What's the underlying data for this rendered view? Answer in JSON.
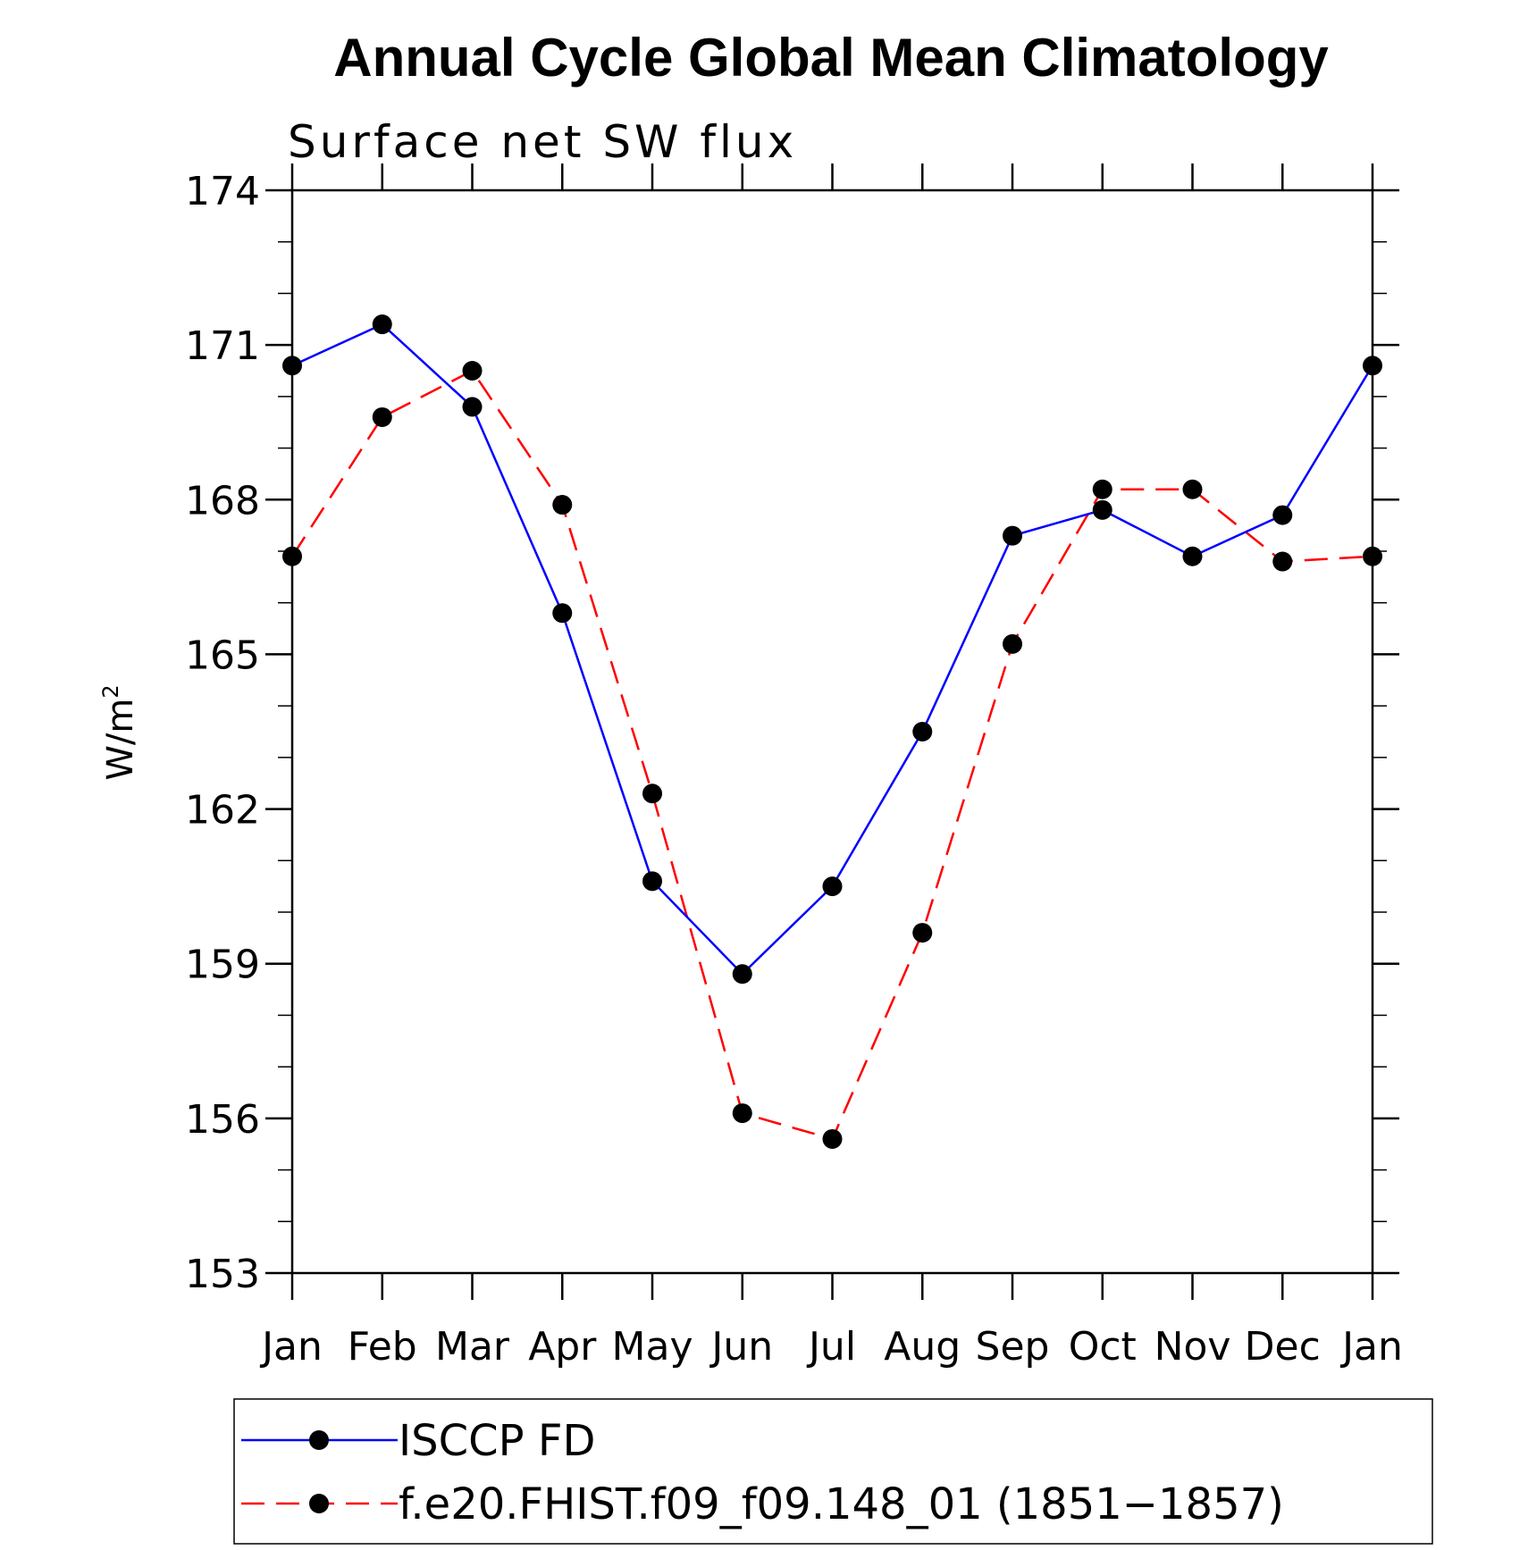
{
  "chart_data": {
    "type": "line",
    "title": "Annual Cycle Global Mean Climatology",
    "subtitle": "Surface net SW flux",
    "ylabel": "W/m",
    "ylabel_superscript": "2",
    "xlabel": "",
    "categories": [
      "Jan",
      "Feb",
      "Mar",
      "Apr",
      "May",
      "Jun",
      "Jul",
      "Aug",
      "Sep",
      "Oct",
      "Nov",
      "Dec",
      "Jan"
    ],
    "ylim": [
      153,
      174
    ],
    "yticks": [
      153,
      156,
      159,
      162,
      165,
      168,
      171,
      174
    ],
    "series": [
      {
        "name": "ISCCP FD",
        "color": "#0000ff",
        "dash": "solid",
        "values": [
          170.6,
          171.4,
          169.8,
          165.8,
          160.6,
          158.8,
          160.5,
          163.5,
          167.3,
          167.8,
          166.9,
          167.7,
          170.6
        ]
      },
      {
        "name": "f.e20.FHIST.f09_f09.148_01 (1851−1857)",
        "color": "#ff0000",
        "dash": "dashed",
        "values": [
          166.9,
          169.6,
          170.5,
          167.9,
          162.3,
          156.1,
          155.6,
          159.6,
          165.2,
          168.2,
          168.2,
          166.8,
          166.9
        ]
      }
    ],
    "legend_position": "bottom"
  }
}
